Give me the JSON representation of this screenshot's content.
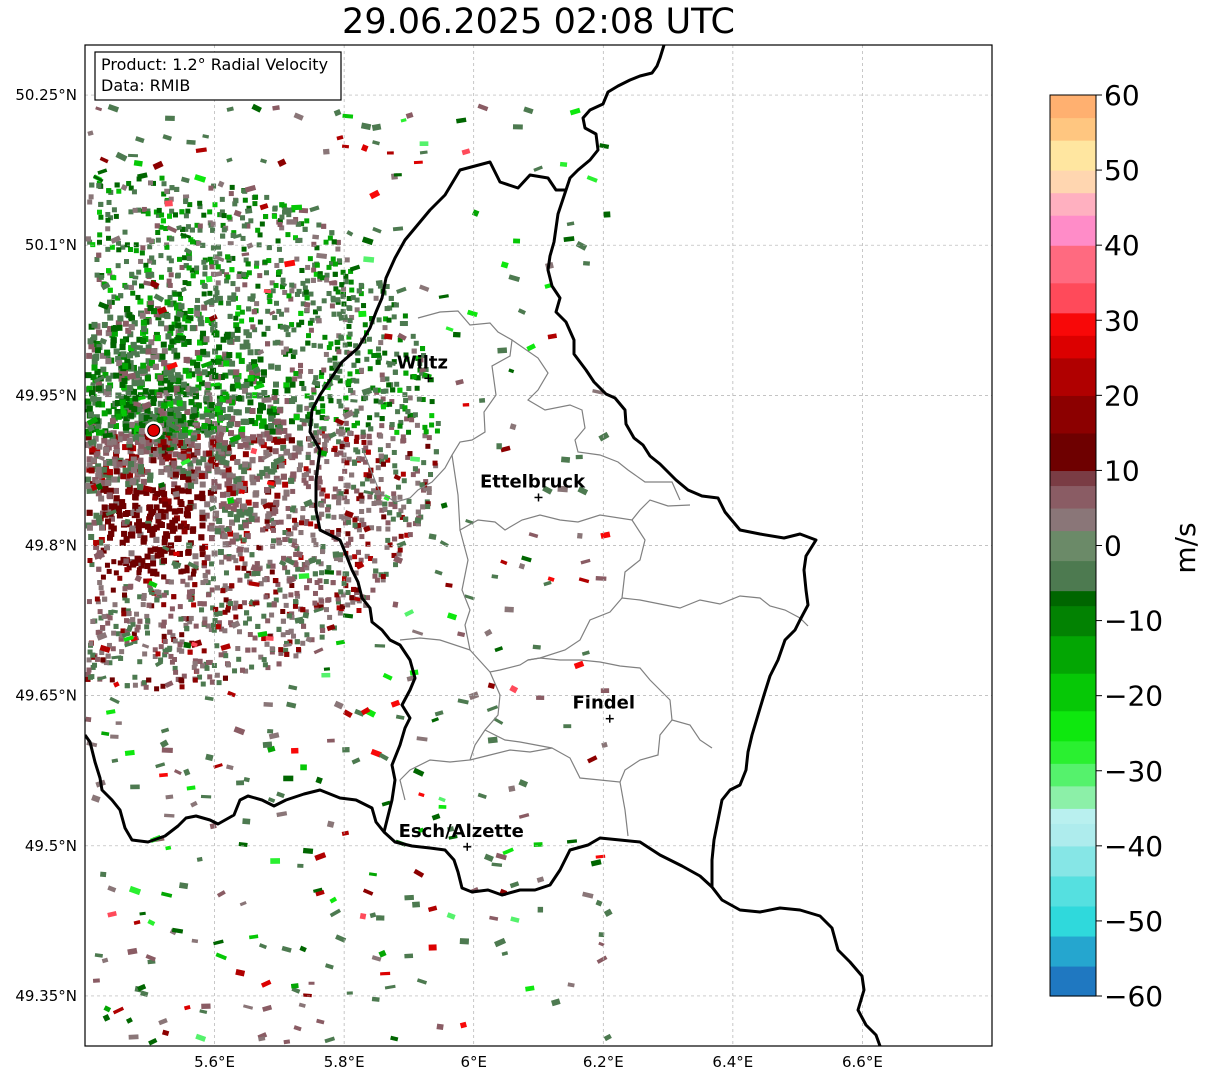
{
  "title": "29.06.2025 02:08 UTC",
  "info": {
    "product": "Product: 1.2° Radial Velocity",
    "data_source": "Data: RMIB"
  },
  "map": {
    "lon_range": [
      5.4,
      6.8
    ],
    "lat_range": [
      49.3,
      50.3
    ],
    "lat_ticks": [
      {
        "value": 50.25,
        "label": "50.25°N"
      },
      {
        "value": 50.1,
        "label": "50.1°N"
      },
      {
        "value": 49.95,
        "label": "49.95°N"
      },
      {
        "value": 49.8,
        "label": "49.8°N"
      },
      {
        "value": 49.65,
        "label": "49.65°N"
      },
      {
        "value": 49.5,
        "label": "49.5°N"
      },
      {
        "value": 49.35,
        "label": "49.35°N"
      }
    ],
    "lon_ticks": [
      {
        "value": 5.6,
        "label": "5.6°E"
      },
      {
        "value": 5.8,
        "label": "5.8°E"
      },
      {
        "value": 6.0,
        "label": "6°E"
      },
      {
        "value": 6.2,
        "label": "6.2°E"
      },
      {
        "value": 6.4,
        "label": "6.4°E"
      },
      {
        "value": 6.6,
        "label": "6.6°E"
      }
    ],
    "radar_site": {
      "lon": 5.506,
      "lat": 49.915
    },
    "cities": [
      {
        "name": "Wiltz",
        "lon": 5.93,
        "lat": 49.967
      },
      {
        "name": "Ettelbruck",
        "lon": 6.1,
        "lat": 49.848
      },
      {
        "name": "Findel",
        "lon": 6.21,
        "lat": 49.627
      },
      {
        "name": "Esch/Alzette",
        "lon": 5.99,
        "lat": 49.499
      }
    ],
    "grid": true
  },
  "colorbar": {
    "label": "m/s",
    "range": [
      -60,
      60
    ],
    "ticks": [
      {
        "value": 60,
        "label": "60"
      },
      {
        "value": 50,
        "label": "50"
      },
      {
        "value": 40,
        "label": "40"
      },
      {
        "value": 30,
        "label": "30"
      },
      {
        "value": 20,
        "label": "20"
      },
      {
        "value": 10,
        "label": "10"
      },
      {
        "value": 0,
        "label": "0"
      },
      {
        "value": -10,
        "label": "−10"
      },
      {
        "value": -20,
        "label": "−20"
      },
      {
        "value": -30,
        "label": "−30"
      },
      {
        "value": -40,
        "label": "−40"
      },
      {
        "value": -50,
        "label": "−50"
      },
      {
        "value": -60,
        "label": "−60"
      }
    ],
    "color_stops": [
      {
        "value": -60,
        "color": "#1f78c1"
      },
      {
        "value": -56,
        "color": "#25a6cf"
      },
      {
        "value": -52,
        "color": "#2fd9dc"
      },
      {
        "value": -48,
        "color": "#55e0e0"
      },
      {
        "value": -44,
        "color": "#86e6e6"
      },
      {
        "value": -40,
        "color": "#aeeced"
      },
      {
        "value": -37,
        "color": "#b9f0ef"
      },
      {
        "value": -35,
        "color": "#8cf0a8"
      },
      {
        "value": -32,
        "color": "#55f26c"
      },
      {
        "value": -29,
        "color": "#2af030"
      },
      {
        "value": -26,
        "color": "#0ee80e"
      },
      {
        "value": -22,
        "color": "#06c806"
      },
      {
        "value": -17,
        "color": "#03a603"
      },
      {
        "value": -12,
        "color": "#028202"
      },
      {
        "value": -8,
        "color": "#006600"
      },
      {
        "value": -6,
        "color": "#4d7a50"
      },
      {
        "value": -2,
        "color": "#6b8a68"
      },
      {
        "value": 2,
        "color": "#8a7678"
      },
      {
        "value": 5,
        "color": "#8a5c64"
      },
      {
        "value": 8,
        "color": "#7a3c44"
      },
      {
        "value": 10,
        "color": "#6e0000"
      },
      {
        "value": 15,
        "color": "#8c0000"
      },
      {
        "value": 20,
        "color": "#b00000"
      },
      {
        "value": 25,
        "color": "#dc0000"
      },
      {
        "value": 28,
        "color": "#f80808"
      },
      {
        "value": 31,
        "color": "#ff4a5a"
      },
      {
        "value": 35,
        "color": "#ff6a80"
      },
      {
        "value": 40,
        "color": "#ff8cc8"
      },
      {
        "value": 44,
        "color": "#ffb0c0"
      },
      {
        "value": 47,
        "color": "#ffd6b0"
      },
      {
        "value": 50,
        "color": "#ffe6a0"
      },
      {
        "value": 54,
        "color": "#ffc680"
      },
      {
        "value": 57,
        "color": "#ffb070"
      },
      {
        "value": 60,
        "color": "#ff9a58"
      }
    ]
  }
}
